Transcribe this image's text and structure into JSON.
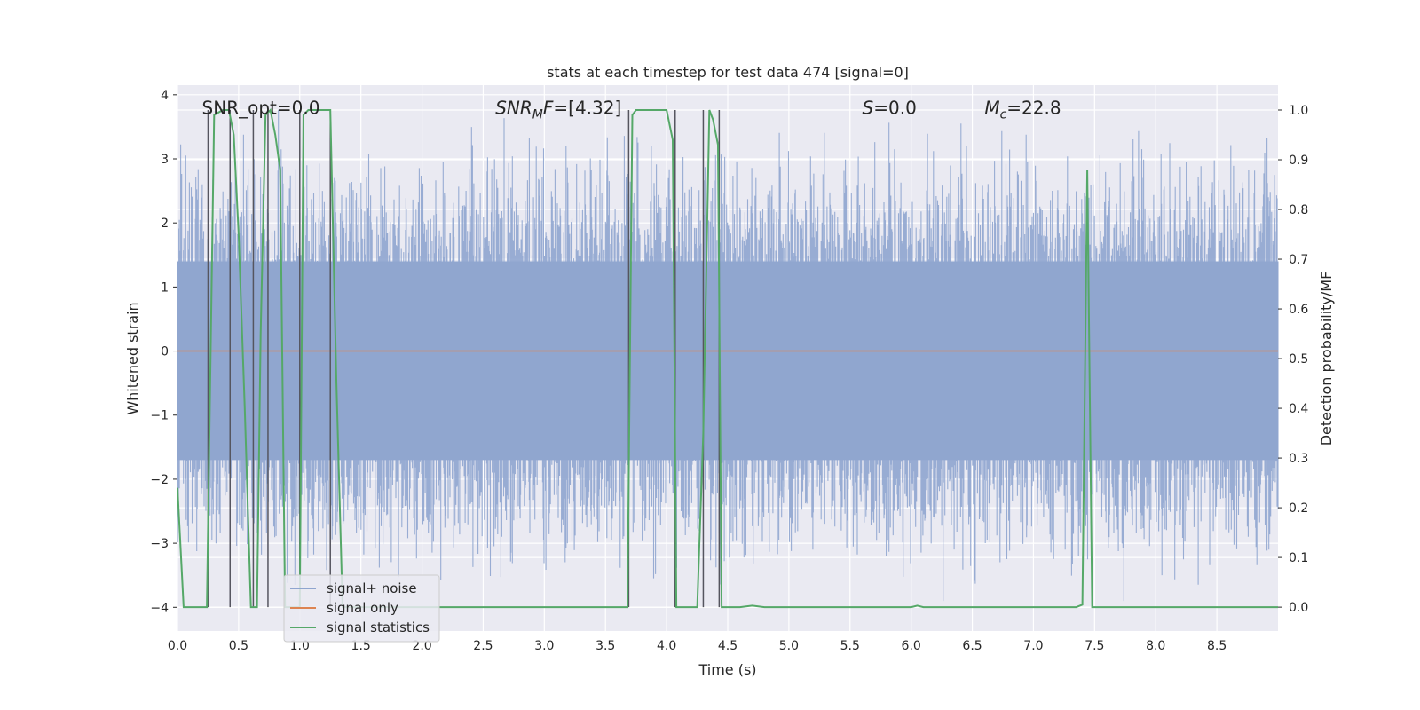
{
  "chart_data": {
    "type": "line",
    "title": "stats at each timestep for test data 474 [signal=0]",
    "xlabel": "Time (s)",
    "ylabel_left": "Whitened strain",
    "ylabel_right": "Detection probability/MF",
    "xlim": [
      0.0,
      9.0
    ],
    "ylim_left": [
      -4.37,
      4.15
    ],
    "ylim_right": [
      -0.048,
      1.05
    ],
    "x_ticks": [
      0.0,
      0.5,
      1.0,
      1.5,
      2.0,
      2.5,
      3.0,
      3.5,
      4.0,
      4.5,
      5.0,
      5.5,
      6.0,
      6.5,
      7.0,
      7.5,
      8.0,
      8.5
    ],
    "x_tick_labels": [
      "0.0",
      "0.5",
      "1.0",
      "1.5",
      "2.0",
      "2.5",
      "3.0",
      "3.5",
      "4.0",
      "4.5",
      "5.0",
      "5.5",
      "6.0",
      "6.5",
      "7.0",
      "7.5",
      "8.0",
      "8.5"
    ],
    "y_left_ticks": [
      -4,
      -3,
      -2,
      -1,
      0,
      1,
      2,
      3,
      4
    ],
    "y_left_tick_labels": [
      "−4",
      "−3",
      "−2",
      "−1",
      "0",
      "1",
      "2",
      "3",
      "4"
    ],
    "y_right_ticks": [
      0.0,
      0.1,
      0.2,
      0.3,
      0.4,
      0.5,
      0.6,
      0.7,
      0.8,
      0.9,
      1.0
    ],
    "y_right_tick_labels": [
      "0.0",
      "0.1",
      "0.2",
      "0.3",
      "0.4",
      "0.5",
      "0.6",
      "0.7",
      "0.8",
      "0.9",
      "1.0"
    ],
    "annotations": [
      {
        "name": "snr-opt",
        "text": "SNR_opt=0.0",
        "x": 0.2,
        "y": 3.8
      },
      {
        "name": "snr-mf",
        "text": "SNR_MF=[4.32]",
        "x": 2.6,
        "y": 3.8
      },
      {
        "name": "s-value",
        "text": "S=0.0",
        "x": 5.6,
        "y": 3.8
      },
      {
        "name": "chirp-mass",
        "text": "M_c=22.8",
        "x": 6.6,
        "y": 3.8
      }
    ],
    "series": [
      {
        "name": "signal+ noise",
        "color": "#8fa5cf",
        "kind": "noise",
        "typical_range": [
          -1.7,
          1.4
        ],
        "extreme_range": [
          -3.9,
          3.9
        ]
      },
      {
        "name": "signal only",
        "color": "#dd8452",
        "kind": "constant",
        "value": 0.0
      },
      {
        "name": "signal statistics",
        "color": "#55a868",
        "axis": "right",
        "x": [
          0.0,
          0.05,
          0.1,
          0.24,
          0.3,
          0.37,
          0.42,
          0.46,
          0.5,
          0.55,
          0.6,
          0.65,
          0.68,
          0.72,
          0.76,
          0.8,
          0.84,
          0.88,
          0.95,
          1.0,
          1.03,
          1.07,
          1.12,
          1.2,
          1.25,
          1.3,
          1.35,
          1.5,
          2.0,
          2.5,
          3.0,
          3.5,
          3.68,
          3.72,
          3.75,
          3.8,
          3.9,
          4.0,
          4.05,
          4.08,
          4.12,
          4.2,
          4.25,
          4.3,
          4.35,
          4.38,
          4.42,
          4.45,
          4.5,
          4.6,
          4.7,
          4.8,
          5.0,
          5.5,
          6.0,
          6.05,
          6.1,
          6.5,
          7.0,
          7.35,
          7.4,
          7.44,
          7.48,
          7.5,
          8.0,
          8.5,
          9.0
        ],
        "y": [
          0.24,
          0.0,
          0.0,
          0.0,
          0.99,
          1.0,
          1.0,
          0.95,
          0.75,
          0.4,
          0.0,
          0.0,
          0.55,
          0.99,
          1.0,
          0.95,
          0.88,
          0.0,
          0.0,
          0.0,
          0.99,
          1.0,
          1.0,
          1.0,
          1.0,
          0.45,
          0.0,
          0.0,
          0.0,
          0.0,
          0.0,
          0.0,
          0.0,
          0.99,
          1.0,
          1.0,
          1.0,
          1.0,
          0.94,
          0.0,
          0.0,
          0.0,
          0.0,
          0.35,
          1.0,
          0.98,
          0.93,
          0.0,
          0.0,
          0.0,
          0.003,
          0.0,
          0.0,
          0.0,
          0.0,
          0.003,
          0.0,
          0.0,
          0.0,
          0.0,
          0.005,
          0.88,
          0.0,
          0.0,
          0.0,
          0.0,
          0.0
        ]
      }
    ],
    "vertical_lines": [
      0.25,
      0.43,
      0.62,
      0.74,
      1.0,
      1.25,
      3.69,
      4.07,
      4.3,
      4.43
    ],
    "vertical_line_color": "#55555f",
    "legend": {
      "placement": "lower-left",
      "entries": [
        "signal+ noise",
        "signal only",
        "signal statistics"
      ]
    }
  }
}
